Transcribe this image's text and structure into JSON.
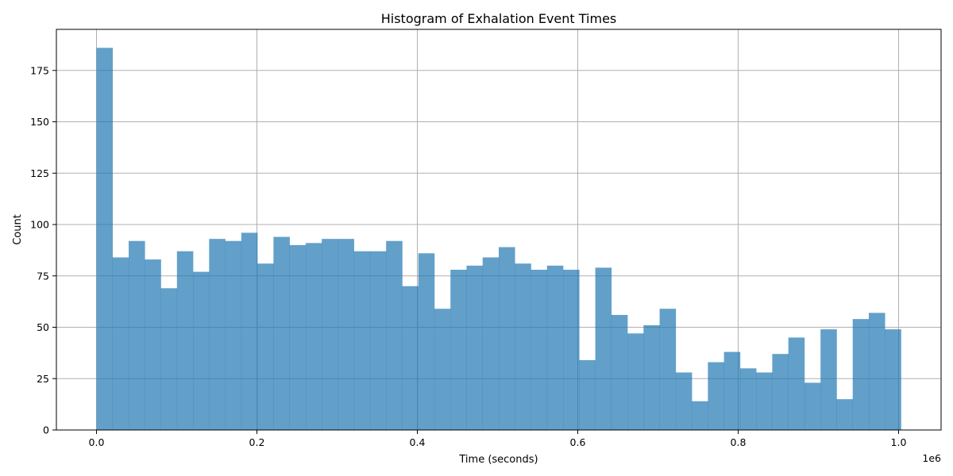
{
  "chart_data": {
    "type": "bar",
    "title": "Histogram of Exhalation Event Times",
    "xlabel": "Time (seconds)",
    "ylabel": "Count",
    "x_scale_note": "1e6",
    "xlim": [
      -50000,
      1053000
    ],
    "ylim": [
      0,
      195
    ],
    "grid": true,
    "bar_color": "#1f77b4",
    "bar_alpha": 0.7,
    "bin_start": 0,
    "bin_width": 20060,
    "values": [
      186,
      84,
      92,
      83,
      69,
      87,
      77,
      93,
      92,
      96,
      81,
      94,
      90,
      91,
      93,
      93,
      87,
      87,
      92,
      70,
      86,
      59,
      78,
      80,
      84,
      89,
      81,
      78,
      80,
      78,
      34,
      79,
      56,
      47,
      51,
      59,
      28,
      14,
      33,
      38,
      30,
      28,
      37,
      45,
      23,
      49,
      15,
      54,
      57,
      49
    ],
    "x_ticks": [
      0,
      200000,
      400000,
      600000,
      800000,
      1000000
    ],
    "x_tick_labels": [
      "0.0",
      "0.2",
      "0.4",
      "0.6",
      "0.8",
      "1.0"
    ],
    "y_ticks": [
      0,
      25,
      50,
      75,
      100,
      125,
      150,
      175
    ],
    "y_tick_labels": [
      "0",
      "25",
      "50",
      "75",
      "100",
      "125",
      "150",
      "175"
    ]
  }
}
